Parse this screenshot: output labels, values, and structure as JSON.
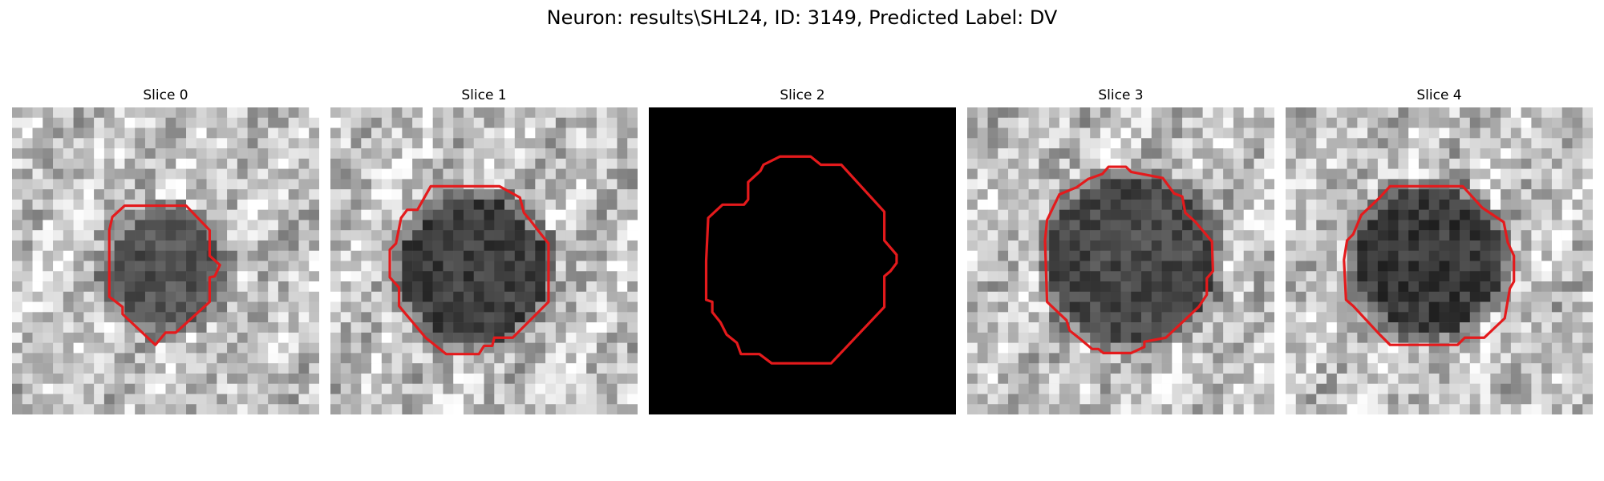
{
  "figure": {
    "title": "Neuron: results\\SHL24, ID: 3149, Predicted Label: DV"
  },
  "panels": [
    {
      "title": "Slice 0"
    },
    {
      "title": "Slice 1"
    },
    {
      "title": "Slice 2"
    },
    {
      "title": "Slice 3"
    },
    {
      "title": "Slice 4"
    }
  ],
  "style": {
    "contour_color": "#e41a1c",
    "background_color": "#000000"
  }
}
